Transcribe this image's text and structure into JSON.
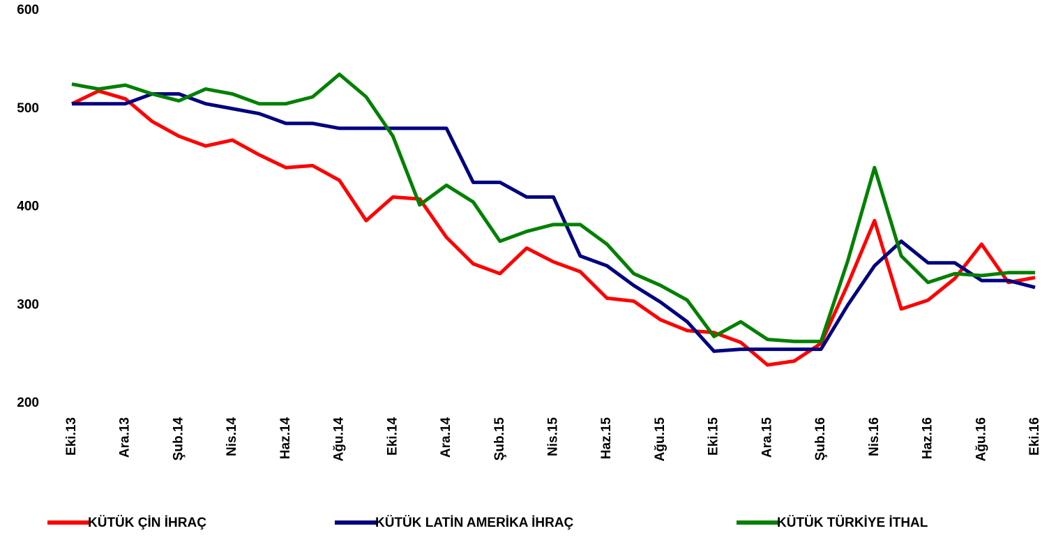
{
  "chart_data": {
    "type": "line",
    "categories": [
      "Eki.13",
      null,
      "Ara.13",
      null,
      "Şub.14",
      null,
      "Nis.14",
      null,
      "Haz.14",
      null,
      "Ağu.14",
      null,
      "Eki.14",
      null,
      "Ara.14",
      null,
      "Şub.15",
      null,
      "Nis.15",
      null,
      "Haz.15",
      null,
      "Ağu.15",
      null,
      "Eki.15",
      null,
      "Ara.15",
      null,
      "Şub.16",
      null,
      "Nis.16",
      null,
      "Haz.16",
      null,
      "Ağu.16",
      null,
      "Eki.16"
    ],
    "series": [
      {
        "name": "KÜTÜK ÇİN İHRAÇ",
        "color": "#ff0000",
        "values": [
          505,
          518,
          510,
          487,
          472,
          462,
          468,
          453,
          440,
          442,
          427,
          386,
          410,
          408,
          369,
          342,
          332,
          358,
          344,
          334,
          307,
          304,
          285,
          274,
          272,
          262,
          239,
          243,
          261,
          321,
          386,
          296,
          305,
          327,
          362,
          323,
          328
        ]
      },
      {
        "name": "KÜTÜK LATİN AMERİKA İHRAÇ",
        "color": "#000080",
        "values": [
          505,
          505,
          505,
          515,
          515,
          505,
          500,
          495,
          485,
          485,
          480,
          480,
          480,
          480,
          480,
          425,
          425,
          410,
          410,
          350,
          340,
          320,
          303,
          283,
          253,
          255,
          255,
          255,
          255,
          300,
          340,
          365,
          343,
          343,
          325,
          325,
          318
        ]
      },
      {
        "name": "KÜTÜK TÜRKİYE İTHAL",
        "color": "#008000",
        "values": [
          525,
          520,
          524,
          515,
          508,
          520,
          515,
          505,
          505,
          512,
          535,
          512,
          472,
          402,
          422,
          405,
          365,
          375,
          382,
          382,
          362,
          332,
          320,
          305,
          268,
          283,
          265,
          263,
          263,
          345,
          440,
          350,
          323,
          332,
          330,
          333,
          333
        ]
      }
    ],
    "ylim": [
      200,
      600
    ],
    "yticks": [
      200,
      300,
      400,
      500,
      600
    ],
    "grid": false,
    "legend": "bottom"
  }
}
